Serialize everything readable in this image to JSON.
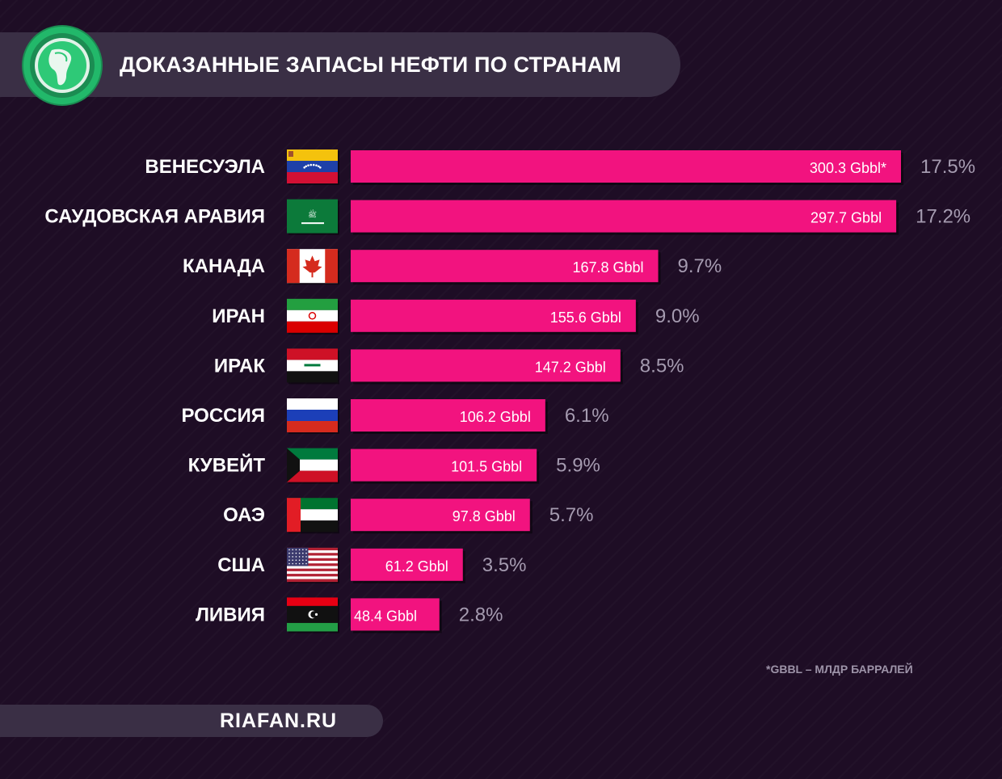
{
  "title": "ДОКАЗАННЫЕ ЗАПАСЫ НЕФТИ ПО СТРАНАМ",
  "footer": "RIAFAN.RU",
  "footnote": "*GBBL – МЛДР БАРРАЛЕЙ",
  "colors": {
    "background": "#1e0d25",
    "bar": "#f2137f",
    "band": "#3a2f45",
    "percent": "#a59bb0",
    "logo_green": "#1faa63"
  },
  "logo_icon": "globe-icon",
  "chart_data": {
    "type": "bar",
    "orientation": "horizontal",
    "title": "ДОКАЗАННЫЕ ЗАПАСЫ НЕФТИ ПО СТРАНАМ",
    "unit": "Gbbl",
    "categories": [
      "ВЕНЕСУЭЛА",
      "САУДОВСКАЯ АРАВИЯ",
      "КАНАДА",
      "ИРАН",
      "ИРАК",
      "РОССИЯ",
      "КУВЕЙТ",
      "ОАЭ",
      "США",
      "ЛИВИЯ"
    ],
    "flags": [
      "venezuela-flag-icon",
      "saudi-arabia-flag-icon",
      "canada-flag-icon",
      "iran-flag-icon",
      "iraq-flag-icon",
      "russia-flag-icon",
      "kuwait-flag-icon",
      "uae-flag-icon",
      "usa-flag-icon",
      "libya-flag-icon"
    ],
    "values": [
      300.3,
      297.7,
      167.8,
      155.6,
      147.2,
      106.2,
      101.5,
      97.8,
      61.2,
      48.4
    ],
    "value_labels": [
      "300.3 Gbbl*",
      "297.7 Gbbl",
      "167.8 Gbbl",
      "155.6 Gbbl",
      "147.2 Gbbl",
      "106.2 Gbbl",
      "101.5 Gbbl",
      "97.8 Gbbl",
      "61.2 Gbbl",
      "48.4 Gbbl"
    ],
    "percent_labels": [
      "17.5%",
      "17.2%",
      "9.7%",
      "9.0%",
      "8.5%",
      "6.1%",
      "5.9%",
      "5.7%",
      "3.5%",
      "2.8%"
    ],
    "xlim": [
      0,
      300.3
    ]
  }
}
